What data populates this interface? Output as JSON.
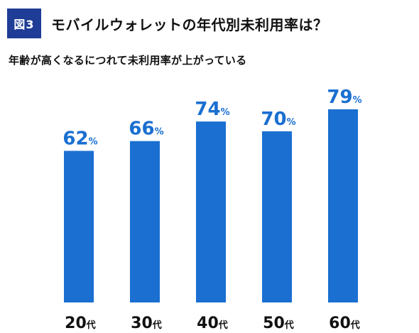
{
  "header": {
    "figure_label": "図3",
    "title": "モバイルウォレットの年代別未利用率は？",
    "subtitle": "年齢が高くなるにつれて未利用率が上がっている"
  },
  "colors": {
    "bar": "#1a6fd1",
    "badge": "#1f3c96",
    "value_text": "#1a6fd1"
  },
  "chart_data": {
    "type": "bar",
    "title": "モバイルウォレットの年代別未利用率は？",
    "subtitle": "年齢が高くなるにつれて未利用率が上がっている",
    "categories": [
      "20代",
      "30代",
      "40代",
      "50代",
      "60代"
    ],
    "category_parts": [
      {
        "num": "20",
        "unit": "代"
      },
      {
        "num": "30",
        "unit": "代"
      },
      {
        "num": "40",
        "unit": "代"
      },
      {
        "num": "50",
        "unit": "代"
      },
      {
        "num": "60",
        "unit": "代"
      }
    ],
    "values": [
      62,
      66,
      74,
      70,
      79
    ],
    "value_unit": "%",
    "xlabel": "",
    "ylabel": "",
    "ylim": [
      0,
      100
    ],
    "grid": false,
    "legend": "none"
  }
}
